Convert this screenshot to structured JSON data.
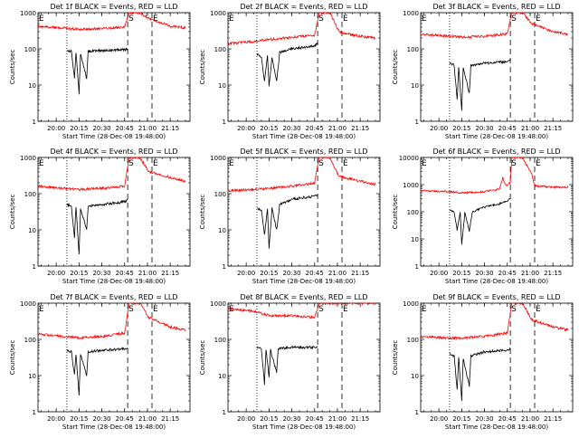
{
  "chart_data": [
    {
      "type": "line",
      "title": "Det 1f BLACK = Events, RED = LLD",
      "xlabel": "Start Time (28-Dec-08 19:48:00)",
      "ylabel": "Counts/sec",
      "x_ticks": [
        "20:00",
        "20:15",
        "20:30",
        "20:45",
        "21:00",
        "21:15"
      ],
      "y_ticks": [
        "1",
        "10",
        "100",
        "1000"
      ],
      "y_scale": "log",
      "ylim": [
        1,
        1000
      ],
      "markers": [
        "E",
        "S",
        "E"
      ],
      "series": [
        {
          "color": "#ff0000",
          "points": [
            [
              "19:48",
              420
            ],
            [
              "20:05",
              380
            ],
            [
              "20:15",
              350
            ],
            [
              "20:30",
              360
            ],
            [
              "20:45",
              400
            ],
            [
              "20:48",
              1000
            ],
            [
              "20:55",
              1000
            ],
            [
              "21:01",
              700
            ],
            [
              "21:15",
              420
            ],
            [
              "21:25",
              380
            ]
          ]
        },
        {
          "color": "#000000",
          "points": [
            [
              "20:07",
              90
            ],
            [
              "20:10",
              85
            ],
            [
              "20:12",
              15
            ],
            [
              "20:13",
              80
            ],
            [
              "20:15",
              6
            ],
            [
              "20:16",
              75
            ],
            [
              "20:20",
              15
            ],
            [
              "20:21",
              85
            ],
            [
              "20:30",
              90
            ],
            [
              "20:45",
              95
            ],
            [
              "20:47",
              100
            ]
          ]
        }
      ]
    },
    {
      "type": "line",
      "title": "Det 2f BLACK = Events, RED = LLD",
      "xlabel": "Start Time (28-Dec-08 19:48:00)",
      "ylabel": "Counts/sec",
      "x_ticks": [
        "20:00",
        "20:15",
        "20:30",
        "20:45",
        "21:00",
        "21:15"
      ],
      "y_ticks": [
        "1",
        "10",
        "100",
        "1000"
      ],
      "y_scale": "log",
      "ylim": [
        1,
        1000
      ],
      "markers": [
        "E",
        "S",
        "E"
      ],
      "series": [
        {
          "color": "#ff0000",
          "points": [
            [
              "19:48",
              140
            ],
            [
              "20:05",
              160
            ],
            [
              "20:15",
              180
            ],
            [
              "20:30",
              210
            ],
            [
              "20:45",
              240
            ],
            [
              "20:48",
              1000
            ],
            [
              "20:55",
              1000
            ],
            [
              "21:01",
              300
            ],
            [
              "21:15",
              220
            ],
            [
              "21:25",
              200
            ]
          ]
        },
        {
          "color": "#000000",
          "points": [
            [
              "20:07",
              70
            ],
            [
              "20:10",
              60
            ],
            [
              "20:12",
              12
            ],
            [
              "20:14",
              70
            ],
            [
              "20:15",
              9
            ],
            [
              "20:17",
              60
            ],
            [
              "20:20",
              12
            ],
            [
              "20:22",
              80
            ],
            [
              "20:30",
              100
            ],
            [
              "20:45",
              120
            ],
            [
              "20:47",
              140
            ]
          ]
        }
      ]
    },
    {
      "type": "line",
      "title": "Det 3f BLACK = Events, RED = LLD",
      "xlabel": "Start Time (28-Dec-08 19:48:00)",
      "ylabel": "Counts/sec",
      "x_ticks": [
        "20:00",
        "20:15",
        "20:30",
        "20:45",
        "21:00",
        "21:15"
      ],
      "y_ticks": [
        "1",
        "10",
        "100",
        "1000"
      ],
      "y_scale": "log",
      "ylim": [
        1,
        1000
      ],
      "markers": [
        "E",
        "S",
        "E"
      ],
      "series": [
        {
          "color": "#ff0000",
          "points": [
            [
              "19:48",
              250
            ],
            [
              "20:05",
              230
            ],
            [
              "20:15",
              210
            ],
            [
              "20:30",
              220
            ],
            [
              "20:45",
              260
            ],
            [
              "20:48",
              1000
            ],
            [
              "20:55",
              1000
            ],
            [
              "21:01",
              500
            ],
            [
              "21:15",
              300
            ],
            [
              "21:25",
              250
            ]
          ]
        },
        {
          "color": "#000000",
          "points": [
            [
              "20:07",
              40
            ],
            [
              "20:10",
              35
            ],
            [
              "20:12",
              4
            ],
            [
              "20:13",
              30
            ],
            [
              "20:15",
              2
            ],
            [
              "20:16",
              30
            ],
            [
              "20:20",
              6
            ],
            [
              "20:21",
              35
            ],
            [
              "20:30",
              40
            ],
            [
              "20:45",
              45
            ],
            [
              "20:47",
              50
            ]
          ]
        }
      ]
    },
    {
      "type": "line",
      "title": "Det 4f BLACK = Events, RED = LLD",
      "xlabel": "Start Time (28-Dec-08 19:48:00)",
      "ylabel": "Counts/sec",
      "x_ticks": [
        "20:00",
        "20:15",
        "20:30",
        "20:45",
        "21:00",
        "21:15"
      ],
      "y_ticks": [
        "1",
        "10",
        "100",
        "1000"
      ],
      "y_scale": "log",
      "ylim": [
        1,
        1000
      ],
      "markers": [
        "E",
        "S",
        "E"
      ],
      "series": [
        {
          "color": "#ff0000",
          "points": [
            [
              "19:48",
              160
            ],
            [
              "20:05",
              140
            ],
            [
              "20:15",
              130
            ],
            [
              "20:30",
              140
            ],
            [
              "20:45",
              160
            ],
            [
              "20:48",
              1000
            ],
            [
              "20:55",
              1000
            ],
            [
              "21:01",
              400
            ],
            [
              "21:15",
              280
            ],
            [
              "21:25",
              220
            ]
          ]
        },
        {
          "color": "#000000",
          "points": [
            [
              "20:07",
              50
            ],
            [
              "20:10",
              45
            ],
            [
              "20:12",
              6
            ],
            [
              "20:13",
              45
            ],
            [
              "20:15",
              2
            ],
            [
              "20:16",
              40
            ],
            [
              "20:20",
              10
            ],
            [
              "20:21",
              45
            ],
            [
              "20:30",
              50
            ],
            [
              "20:45",
              60
            ],
            [
              "20:47",
              65
            ]
          ]
        }
      ]
    },
    {
      "type": "line",
      "title": "Det 5f BLACK = Events, RED = LLD",
      "xlabel": "Start Time (28-Dec-08 19:48:00)",
      "ylabel": "Counts/sec",
      "x_ticks": [
        "20:00",
        "20:15",
        "20:30",
        "20:45",
        "21:00",
        "21:15"
      ],
      "y_ticks": [
        "1",
        "10",
        "100",
        "1000"
      ],
      "y_scale": "log",
      "ylim": [
        1,
        1000
      ],
      "markers": [
        "E",
        "S",
        "E"
      ],
      "series": [
        {
          "color": "#ff0000",
          "points": [
            [
              "19:48",
              120
            ],
            [
              "20:05",
              130
            ],
            [
              "20:15",
              140
            ],
            [
              "20:30",
              160
            ],
            [
              "20:45",
              200
            ],
            [
              "20:48",
              1000
            ],
            [
              "20:55",
              1000
            ],
            [
              "21:01",
              300
            ],
            [
              "21:15",
              220
            ],
            [
              "21:25",
              180
            ]
          ]
        },
        {
          "color": "#000000",
          "points": [
            [
              "20:07",
              40
            ],
            [
              "20:10",
              35
            ],
            [
              "20:12",
              7
            ],
            [
              "20:14",
              40
            ],
            [
              "20:15",
              3
            ],
            [
              "20:17",
              40
            ],
            [
              "20:20",
              10
            ],
            [
              "20:22",
              50
            ],
            [
              "20:30",
              70
            ],
            [
              "20:45",
              85
            ],
            [
              "20:47",
              90
            ]
          ]
        }
      ]
    },
    {
      "type": "line",
      "title": "Det 6f BLACK = Events, RED = LLD",
      "xlabel": "Start Time (28-Dec-08 19:48:00)",
      "ylabel": "Counts/sec",
      "x_ticks": [
        "20:00",
        "20:15",
        "20:30",
        "20:45",
        "21:00",
        "21:15"
      ],
      "y_ticks": [
        "1",
        "10",
        "100",
        "1000",
        "10000"
      ],
      "y_scale": "log",
      "ylim": [
        1,
        10000
      ],
      "markers": [
        "E",
        "S",
        "E"
      ],
      "series": [
        {
          "color": "#ff0000",
          "points": [
            [
              "19:48",
              600
            ],
            [
              "20:05",
              550
            ],
            [
              "20:15",
              500
            ],
            [
              "20:30",
              550
            ],
            [
              "20:40",
              700
            ],
            [
              "20:42",
              1800
            ],
            [
              "20:44",
              900
            ],
            [
              "20:47",
              1200
            ],
            [
              "20:48",
              10000
            ],
            [
              "20:55",
              10000
            ],
            [
              "21:01",
              2500
            ],
            [
              "21:03",
              900
            ],
            [
              "21:15",
              800
            ],
            [
              "21:25",
              800
            ]
          ]
        },
        {
          "color": "#000000",
          "points": [
            [
              "20:07",
              120
            ],
            [
              "20:10",
              100
            ],
            [
              "20:12",
              20
            ],
            [
              "20:14",
              100
            ],
            [
              "20:15",
              6
            ],
            [
              "20:17",
              90
            ],
            [
              "20:20",
              20
            ],
            [
              "20:22",
              100
            ],
            [
              "20:30",
              150
            ],
            [
              "20:40",
              200
            ],
            [
              "20:45",
              250
            ],
            [
              "20:47",
              300
            ]
          ]
        }
      ]
    },
    {
      "type": "line",
      "title": "Det 7f BLACK = Events, RED = LLD",
      "xlabel": "Start Time (28-Dec-08 19:48:00)",
      "ylabel": "Counts/sec",
      "x_ticks": [
        "20:00",
        "20:15",
        "20:30",
        "20:45",
        "21:00",
        "21:15"
      ],
      "y_ticks": [
        "1",
        "10",
        "100",
        "1000"
      ],
      "y_scale": "log",
      "ylim": [
        1,
        1000
      ],
      "markers": [
        "E",
        "S",
        "E"
      ],
      "series": [
        {
          "color": "#ff0000",
          "points": [
            [
              "19:48",
              140
            ],
            [
              "20:05",
              120
            ],
            [
              "20:15",
              110
            ],
            [
              "20:30",
              120
            ],
            [
              "20:45",
              150
            ],
            [
              "20:48",
              1000
            ],
            [
              "20:55",
              1000
            ],
            [
              "21:01",
              400
            ],
            [
              "21:15",
              220
            ],
            [
              "21:25",
              180
            ]
          ]
        },
        {
          "color": "#000000",
          "points": [
            [
              "20:07",
              50
            ],
            [
              "20:10",
              45
            ],
            [
              "20:12",
              10
            ],
            [
              "20:13",
              40
            ],
            [
              "20:15",
              3
            ],
            [
              "20:16",
              40
            ],
            [
              "20:20",
              10
            ],
            [
              "20:21",
              45
            ],
            [
              "20:30",
              50
            ],
            [
              "20:45",
              55
            ],
            [
              "20:47",
              60
            ]
          ]
        }
      ]
    },
    {
      "type": "line",
      "title": "Det 8f BLACK = Events, RED = LLD",
      "xlabel": "Start Time (28-Dec-08 19:48:00)",
      "ylabel": "Counts/sec",
      "x_ticks": [
        "20:00",
        "20:15",
        "20:30",
        "20:45",
        "21:00",
        "21:15"
      ],
      "y_ticks": [
        "1",
        "10",
        "100",
        "1000"
      ],
      "y_scale": "log",
      "ylim": [
        1,
        1000
      ],
      "markers": [
        "E",
        "S",
        "E"
      ],
      "series": [
        {
          "color": "#ff0000",
          "points": [
            [
              "19:48",
              700
            ],
            [
              "20:05",
              600
            ],
            [
              "20:15",
              450
            ],
            [
              "20:30",
              450
            ],
            [
              "20:45",
              400
            ],
            [
              "20:48",
              1000
            ],
            [
              "20:55",
              1000
            ],
            [
              "21:15",
              1000
            ],
            [
              "21:25",
              1000
            ]
          ]
        },
        {
          "color": "#000000",
          "points": [
            [
              "20:07",
              60
            ],
            [
              "20:10",
              55
            ],
            [
              "20:12",
              6
            ],
            [
              "20:13",
              55
            ],
            [
              "20:15",
              9
            ],
            [
              "20:16",
              50
            ],
            [
              "20:20",
              12
            ],
            [
              "20:21",
              55
            ],
            [
              "20:30",
              60
            ],
            [
              "20:45",
              60
            ],
            [
              "20:47",
              65
            ]
          ]
        }
      ]
    },
    {
      "type": "line",
      "title": "Det 9f BLACK = Events, RED = LLD",
      "xlabel": "Start Time (28-Dec-08 19:48:00)",
      "ylabel": "Counts/sec",
      "x_ticks": [
        "20:00",
        "20:15",
        "20:30",
        "20:45",
        "21:00",
        "21:15"
      ],
      "y_ticks": [
        "1",
        "10",
        "100",
        "1000"
      ],
      "y_scale": "log",
      "ylim": [
        1,
        1000
      ],
      "markers": [
        "E",
        "S",
        "E"
      ],
      "series": [
        {
          "color": "#ff0000",
          "points": [
            [
              "19:48",
              120
            ],
            [
              "20:05",
              110
            ],
            [
              "20:15",
              110
            ],
            [
              "20:30",
              120
            ],
            [
              "20:45",
              150
            ],
            [
              "20:48",
              1000
            ],
            [
              "20:55",
              1000
            ],
            [
              "21:01",
              350
            ],
            [
              "21:15",
              220
            ],
            [
              "21:25",
              180
            ]
          ]
        },
        {
          "color": "#000000",
          "points": [
            [
              "20:07",
              40
            ],
            [
              "20:10",
              35
            ],
            [
              "20:12",
              4
            ],
            [
              "20:13",
              35
            ],
            [
              "20:15",
              2
            ],
            [
              "20:16",
              30
            ],
            [
              "20:20",
              5
            ],
            [
              "20:21",
              35
            ],
            [
              "20:30",
              45
            ],
            [
              "20:45",
              50
            ],
            [
              "20:47",
              55
            ]
          ]
        }
      ]
    }
  ]
}
